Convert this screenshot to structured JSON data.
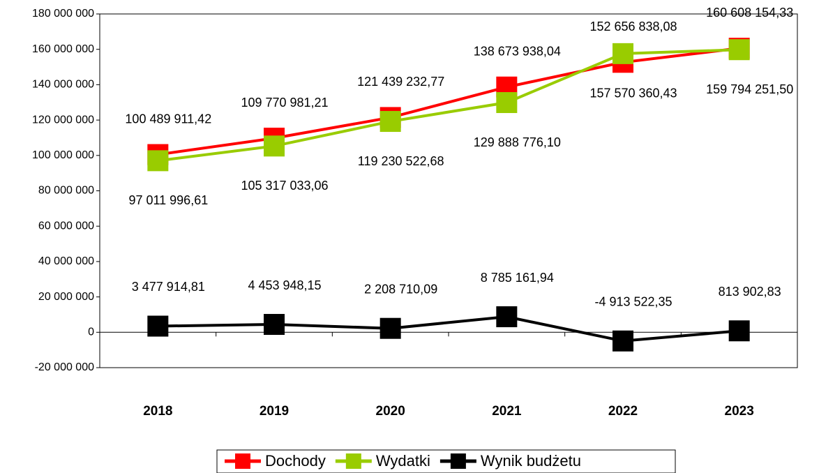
{
  "chart_data": {
    "type": "line",
    "categories": [
      "2018",
      "2019",
      "2020",
      "2021",
      "2022",
      "2023"
    ],
    "series": [
      {
        "name": "Dochody",
        "color": "#ff0000",
        "values": [
          100489911.42,
          109770981.21,
          121439232.77,
          138673938.04,
          152656838.08,
          160608154.33
        ],
        "value_labels": [
          "100 489 911,42",
          "109 770 981,21",
          "121 439 232,77",
          "138 673 938,04",
          "152 656 838,08",
          "160 608 154,33"
        ]
      },
      {
        "name": "Wydatki",
        "color": "#99cc00",
        "values": [
          97011996.61,
          105317033.06,
          119230522.68,
          129888776.1,
          157570360.43,
          159794251.5
        ],
        "value_labels": [
          "97 011 996,61",
          "105 317 033,06",
          "119 230 522,68",
          "129 888 776,10",
          "157 570 360,43",
          "159 794 251,50"
        ]
      },
      {
        "name": "Wynik budżetu",
        "color": "#000000",
        "values": [
          3477914.81,
          4453948.15,
          2208710.09,
          8785161.94,
          -4913522.35,
          813902.83
        ],
        "value_labels": [
          "3 477 914,81",
          "4 453 948,15",
          "2 208 710,09",
          "8 785 161,94",
          "-4 913 522,35",
          "813 902,83"
        ]
      }
    ],
    "ylim": [
      -20000000,
      180000000
    ],
    "yticks": [
      {
        "value": -20000000,
        "label": "-20 000 000"
      },
      0,
      {
        "value": 20000000,
        "label": "20 000 000"
      },
      {
        "value": 40000000,
        "label": "40 000 000"
      },
      {
        "value": 60000000,
        "label": "60 000 000"
      },
      {
        "value": 80000000,
        "label": "80 000 000"
      },
      {
        "value": 100000000,
        "label": "100 000 000"
      },
      {
        "value": 120000000,
        "label": "120 000 000"
      },
      {
        "value": 140000000,
        "label": "140 000 000"
      },
      {
        "value": 160000000,
        "label": "160 000 000"
      },
      {
        "value": 180000000,
        "label": "180 000 000"
      }
    ],
    "legend": "bottom"
  }
}
